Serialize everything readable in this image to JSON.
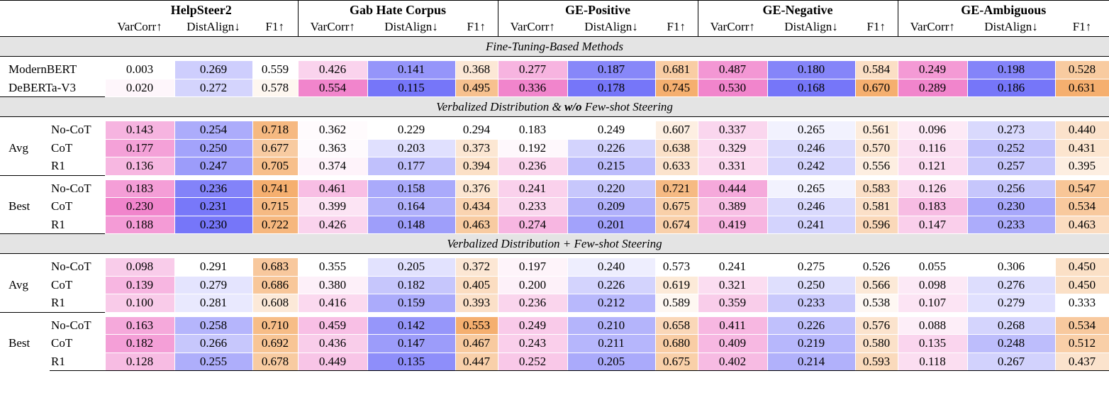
{
  "datasets": [
    "HelpSteer2",
    "Gab Hate Corpus",
    "GE-Positive",
    "GE-Negative",
    "GE-Ambiguous"
  ],
  "metrics": [
    "VarCorr↑",
    "DistAlign↓",
    "F1↑"
  ],
  "sections": [
    {
      "title": "Fine-Tuning-Based Methods",
      "groups": [
        {
          "label": "",
          "rows": [
            {
              "name": "ModernBERT",
              "values": [
                "0.003",
                "0.269",
                "0.559",
                "0.426",
                "0.141",
                "0.368",
                "0.277",
                "0.187",
                "0.681",
                "0.487",
                "0.180",
                "0.584",
                "0.249",
                "0.198",
                "0.528"
              ]
            },
            {
              "name": "DeBERTa-V3",
              "values": [
                "0.020",
                "0.272",
                "0.578",
                "0.554",
                "0.115",
                "0.495",
                "0.336",
                "0.178",
                "0.745",
                "0.530",
                "0.168",
                "0.670",
                "0.289",
                "0.186",
                "0.631"
              ]
            }
          ]
        }
      ]
    },
    {
      "title_pre": "Verbalized Distribution & ",
      "title_bold": "w/o",
      "title_post": " Few-shot Steering",
      "groups": [
        {
          "label": "Avg",
          "rows": [
            {
              "name": "No-CoT",
              "values": [
                "0.143",
                "0.254",
                "0.718",
                "0.362",
                "0.229",
                "0.294",
                "0.183",
                "0.249",
                "0.607",
                "0.337",
                "0.265",
                "0.561",
                "0.096",
                "0.273",
                "0.440"
              ]
            },
            {
              "name": "CoT",
              "values": [
                "0.177",
                "0.250",
                "0.677",
                "0.363",
                "0.203",
                "0.373",
                "0.192",
                "0.226",
                "0.638",
                "0.329",
                "0.246",
                "0.570",
                "0.116",
                "0.252",
                "0.431"
              ]
            },
            {
              "name": "R1",
              "values": [
                "0.136",
                "0.247",
                "0.705",
                "0.374",
                "0.177",
                "0.394",
                "0.236",
                "0.215",
                "0.633",
                "0.331",
                "0.242",
                "0.556",
                "0.121",
                "0.257",
                "0.395"
              ]
            }
          ]
        },
        {
          "label": "Best",
          "rows": [
            {
              "name": "No-CoT",
              "values": [
                "0.183",
                "0.236",
                "0.741",
                "0.461",
                "0.158",
                "0.376",
                "0.241",
                "0.220",
                "0.721",
                "0.444",
                "0.265",
                "0.583",
                "0.126",
                "0.256",
                "0.547"
              ]
            },
            {
              "name": "CoT",
              "values": [
                "0.230",
                "0.231",
                "0.715",
                "0.399",
                "0.164",
                "0.434",
                "0.233",
                "0.209",
                "0.675",
                "0.389",
                "0.246",
                "0.581",
                "0.183",
                "0.230",
                "0.534"
              ]
            },
            {
              "name": "R1",
              "values": [
                "0.188",
                "0.230",
                "0.722",
                "0.426",
                "0.148",
                "0.463",
                "0.274",
                "0.201",
                "0.674",
                "0.419",
                "0.241",
                "0.596",
                "0.147",
                "0.233",
                "0.463"
              ]
            }
          ]
        }
      ]
    },
    {
      "title": "Verbalized Distribution + Few-shot Steering",
      "groups": [
        {
          "label": "Avg",
          "rows": [
            {
              "name": "No-CoT",
              "values": [
                "0.098",
                "0.291",
                "0.683",
                "0.355",
                "0.205",
                "0.372",
                "0.197",
                "0.240",
                "0.573",
                "0.241",
                "0.275",
                "0.526",
                "0.055",
                "0.306",
                "0.450"
              ]
            },
            {
              "name": "CoT",
              "values": [
                "0.139",
                "0.279",
                "0.686",
                "0.380",
                "0.182",
                "0.405",
                "0.200",
                "0.226",
                "0.619",
                "0.321",
                "0.250",
                "0.566",
                "0.098",
                "0.276",
                "0.450"
              ]
            },
            {
              "name": "R1",
              "values": [
                "0.100",
                "0.281",
                "0.608",
                "0.416",
                "0.159",
                "0.393",
                "0.236",
                "0.212",
                "0.589",
                "0.359",
                "0.233",
                "0.538",
                "0.107",
                "0.279",
                "0.333"
              ]
            }
          ]
        },
        {
          "label": "Best",
          "rows": [
            {
              "name": "No-CoT",
              "values": [
                "0.163",
                "0.258",
                "0.710",
                "0.459",
                "0.142",
                "0.553",
                "0.249",
                "0.210",
                "0.658",
                "0.411",
                "0.226",
                "0.576",
                "0.088",
                "0.268",
                "0.534"
              ]
            },
            {
              "name": "CoT",
              "values": [
                "0.182",
                "0.266",
                "0.692",
                "0.436",
                "0.147",
                "0.467",
                "0.243",
                "0.211",
                "0.680",
                "0.409",
                "0.219",
                "0.580",
                "0.135",
                "0.248",
                "0.512"
              ]
            },
            {
              "name": "R1",
              "values": [
                "0.128",
                "0.255",
                "0.678",
                "0.449",
                "0.135",
                "0.447",
                "0.252",
                "0.205",
                "0.675",
                "0.402",
                "0.214",
                "0.593",
                "0.118",
                "0.267",
                "0.437"
              ]
            }
          ]
        }
      ]
    }
  ],
  "colors": {
    "varcorr": "#f07ac8",
    "distalign": "#6a6af8",
    "f1": "#f4a862",
    "section_bg": "#e4e4e4"
  }
}
